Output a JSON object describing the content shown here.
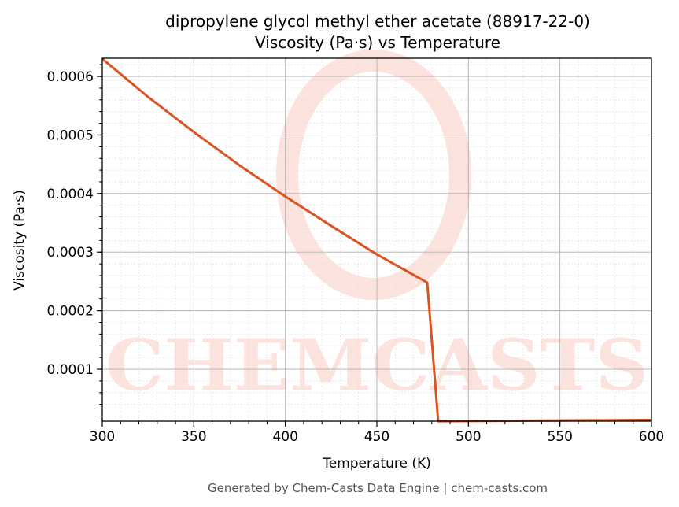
{
  "chart_data": {
    "type": "line",
    "title": "dipropylene glycol methyl ether acetate (88917-22-0)",
    "subtitle": "Viscosity (Pa·s) vs Temperature",
    "xlabel": "Temperature (K)",
    "ylabel": "Viscosity (Pa·s)",
    "xlim": [
      300,
      600
    ],
    "ylim": [
      1.13e-05,
      0.000631
    ],
    "xticks": [
      300,
      350,
      400,
      450,
      500,
      550,
      600
    ],
    "xtick_labels": [
      "300",
      "350",
      "400",
      "450",
      "500",
      "550",
      "600"
    ],
    "yticks": [
      0.0001,
      0.0002,
      0.0003,
      0.0004,
      0.0005,
      0.0006
    ],
    "ytick_labels": [
      "0.0001",
      "0.0002",
      "0.0003",
      "0.0004",
      "0.0005",
      "0.0006"
    ],
    "grid": true,
    "series": [
      {
        "name": "Viscosity",
        "color": "#d95323",
        "x": [
          300,
          325,
          350,
          375,
          400,
          425,
          450,
          477.5,
          483.5,
          600
        ],
        "y": [
          0.00063,
          0.000565,
          0.000505,
          0.000448,
          0.000395,
          0.000345,
          0.000296,
          0.000248,
          1.12e-05,
          1.35e-05
        ]
      }
    ],
    "watermark": "CHEMCASTS",
    "footer": "Generated by Chem-Casts Data Engine | chem-casts.com"
  }
}
